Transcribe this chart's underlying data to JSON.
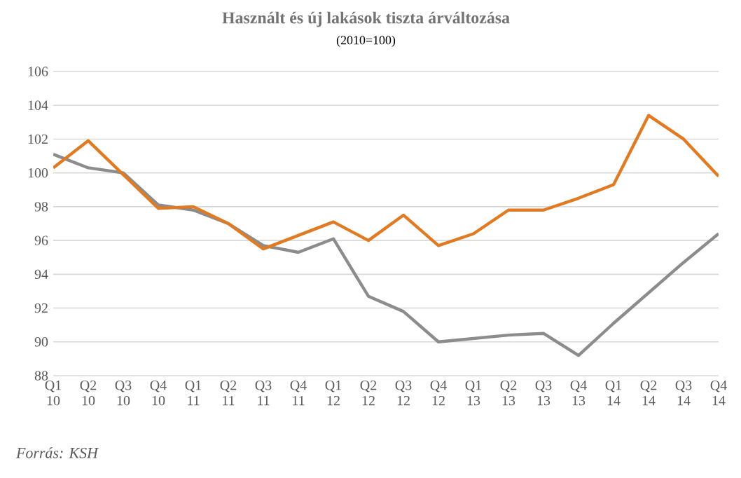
{
  "chart_data": {
    "type": "line",
    "title": "Használt és új lakások tiszta árváltozása",
    "subtitle": "(2010=100)",
    "categories": [
      "Q1 10",
      "Q2 10",
      "Q3 10",
      "Q4 10",
      "Q1 11",
      "Q2 11",
      "Q3 11",
      "Q4 11",
      "Q1 12",
      "Q2 12",
      "Q3 12",
      "Q4 12",
      "Q1 13",
      "Q2 13",
      "Q3 13",
      "Q4 13",
      "Q1 14",
      "Q2 14",
      "Q3 14",
      "Q4 14"
    ],
    "series": [
      {
        "color": "#8c8c8c",
        "values": [
          101.1,
          100.3,
          100.0,
          98.1,
          97.8,
          97.0,
          95.7,
          95.3,
          96.1,
          92.7,
          91.8,
          90.0,
          90.2,
          90.4,
          90.5,
          89.2,
          91.1,
          92.9,
          94.7,
          96.4
        ]
      },
      {
        "color": "#e07b24",
        "values": [
          100.3,
          101.9,
          99.9,
          97.9,
          98.0,
          97.0,
          95.5,
          96.3,
          97.1,
          96.0,
          97.5,
          95.7,
          96.4,
          97.8,
          97.8,
          98.5,
          99.3,
          103.4,
          102.0,
          99.8
        ]
      }
    ],
    "ylim": [
      88,
      106
    ],
    "yticks": [
      88,
      90,
      92,
      94,
      96,
      98,
      100,
      102,
      104,
      106
    ],
    "grid": "y",
    "annotations": [
      "Forrás: KSH"
    ]
  }
}
